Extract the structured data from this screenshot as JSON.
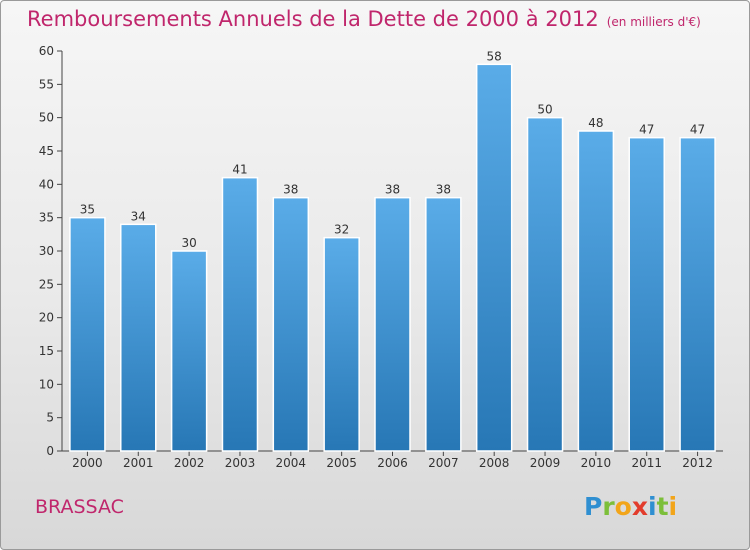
{
  "title": "Remboursements Annuels de la Dette de 2000 à 2012",
  "unit_note": "(en milliers d'€)",
  "commune": "BRASSAC",
  "logo_text": "Proxiti",
  "colors": {
    "accent": "#c0266c",
    "bar_top": "#5aace8",
    "bar_bottom": "#2777b5"
  },
  "chart_data": {
    "type": "bar",
    "title": "Remboursements Annuels de la Dette de 2000 à 2012",
    "xlabel": "",
    "ylabel": "",
    "categories": [
      "2000",
      "2001",
      "2002",
      "2003",
      "2004",
      "2005",
      "2006",
      "2007",
      "2008",
      "2009",
      "2010",
      "2011",
      "2012"
    ],
    "values": [
      35,
      34,
      30,
      41,
      38,
      32,
      38,
      38,
      58,
      50,
      48,
      47,
      47
    ],
    "ylim": [
      0,
      60
    ],
    "yticks": [
      0,
      5,
      10,
      15,
      20,
      25,
      30,
      35,
      40,
      45,
      50,
      55,
      60
    ],
    "grid": false,
    "legend": "none",
    "data_labels": true
  }
}
